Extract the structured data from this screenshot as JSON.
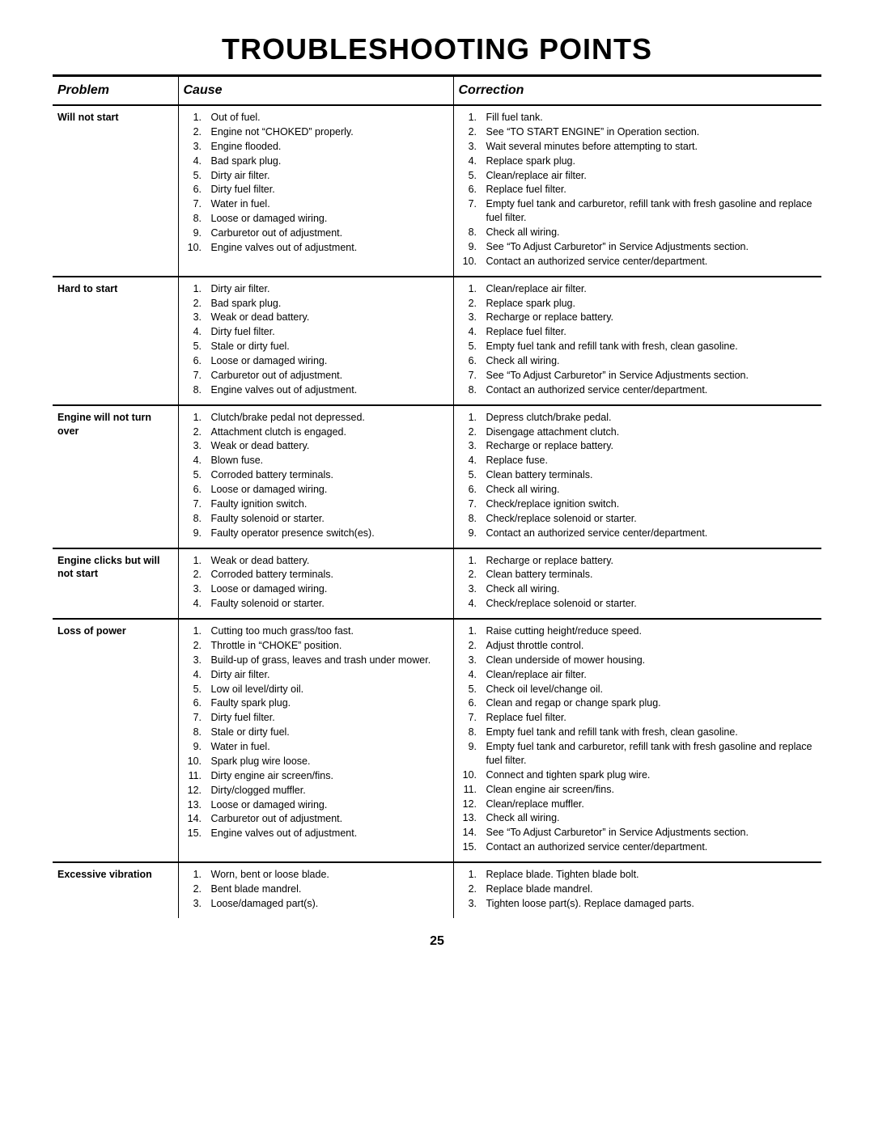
{
  "title": "TROUBLESHOOTING POINTS",
  "page_number": "25",
  "headers": {
    "problem": "Problem",
    "cause": "Cause",
    "correction": "Correction"
  },
  "rows": [
    {
      "problem": "Will not start",
      "causes": [
        "Out of fuel.",
        "Engine not “CHOKED” properly.",
        "Engine flooded.",
        "Bad spark plug.",
        "Dirty air filter.",
        "Dirty fuel filter.",
        "Water in fuel.",
        "Loose or damaged wiring.",
        "Carburetor out of adjustment.",
        "Engine valves out of adjustment."
      ],
      "corrections": [
        "Fill fuel tank.",
        "See “TO START ENGINE” in Operation section.",
        "Wait several minutes before attempting to start.",
        "Replace spark plug.",
        "Clean/replace air filter.",
        "Replace fuel filter.",
        "Empty fuel tank and carburetor, refill tank with fresh gasoline and replace fuel filter.",
        "Check all wiring.",
        "See “To Adjust Carburetor” in Service Adjustments section.",
        "Contact an authorized service center/department."
      ]
    },
    {
      "problem": "Hard to start",
      "causes": [
        "Dirty air filter.",
        "Bad spark plug.",
        "Weak or dead battery.",
        "Dirty fuel filter.",
        "Stale or dirty fuel.",
        "Loose or damaged wiring.",
        "Carburetor out of adjustment.",
        "Engine valves out of adjustment."
      ],
      "corrections": [
        "Clean/replace air filter.",
        "Replace spark plug.",
        "Recharge or replace battery.",
        "Replace fuel filter.",
        "Empty fuel tank and refill tank with fresh, clean gasoline.",
        "Check all wiring.",
        "See “To Adjust Carburetor” in Service Adjustments section.",
        "Contact an authorized service center/department."
      ]
    },
    {
      "problem": "Engine will not turn over",
      "causes": [
        "Clutch/brake pedal not depressed.",
        "Attachment clutch is engaged.",
        "Weak or dead battery.",
        "Blown fuse.",
        "Corroded battery terminals.",
        "Loose or damaged wiring.",
        "Faulty ignition switch.",
        "Faulty solenoid or starter.",
        "Faulty operator presence switch(es)."
      ],
      "corrections": [
        "Depress clutch/brake pedal.",
        "Disengage attachment clutch.",
        "Recharge or replace battery.",
        "Replace fuse.",
        "Clean battery terminals.",
        "Check all wiring.",
        "Check/replace ignition switch.",
        "Check/replace solenoid or starter.",
        "Contact an authorized service center/department."
      ]
    },
    {
      "problem": "Engine clicks but will not start",
      "causes": [
        "Weak or dead battery.",
        "Corroded battery terminals.",
        "Loose or damaged wiring.",
        "Faulty solenoid or starter."
      ],
      "corrections": [
        "Recharge or replace battery.",
        "Clean battery terminals.",
        "Check all wiring.",
        "Check/replace solenoid or starter."
      ]
    },
    {
      "problem": "Loss of power",
      "causes": [
        "Cutting too much grass/too fast.",
        "Throttle in “CHOKE” position.",
        "Build-up of grass, leaves and trash under mower.",
        "Dirty air filter.",
        "Low oil level/dirty oil.",
        "Faulty spark plug.",
        "Dirty fuel filter.",
        "Stale or dirty fuel.",
        "Water in fuel.",
        "Spark plug wire loose.",
        "Dirty engine air screen/fins.",
        "Dirty/clogged muffler.",
        "Loose or damaged wiring.",
        "Carburetor out of adjustment.",
        "Engine valves out of adjustment."
      ],
      "corrections": [
        "Raise cutting height/reduce speed.",
        "Adjust throttle control.",
        "Clean underside of mower housing.",
        "Clean/replace air filter.",
        "Check oil level/change oil.",
        "Clean and regap or change spark plug.",
        "Replace fuel filter.",
        "Empty fuel tank and refill tank with fresh, clean gasoline.",
        "Empty fuel tank and carburetor, refill tank with fresh gasoline and replace fuel filter.",
        "Connect and tighten spark plug wire.",
        "Clean engine air screen/fins.",
        "Clean/replace muffler.",
        "Check all wiring.",
        "See “To Adjust Carburetor” in Service Adjustments section.",
        "Contact an authorized service center/department."
      ]
    },
    {
      "problem": "Excessive vibration",
      "causes": [
        "Worn, bent or loose blade.",
        "Bent blade mandrel.",
        "Loose/damaged part(s)."
      ],
      "corrections": [
        "Replace blade.  Tighten blade bolt.",
        "Replace blade mandrel.",
        "Tighten loose part(s).  Replace damaged parts."
      ]
    }
  ]
}
